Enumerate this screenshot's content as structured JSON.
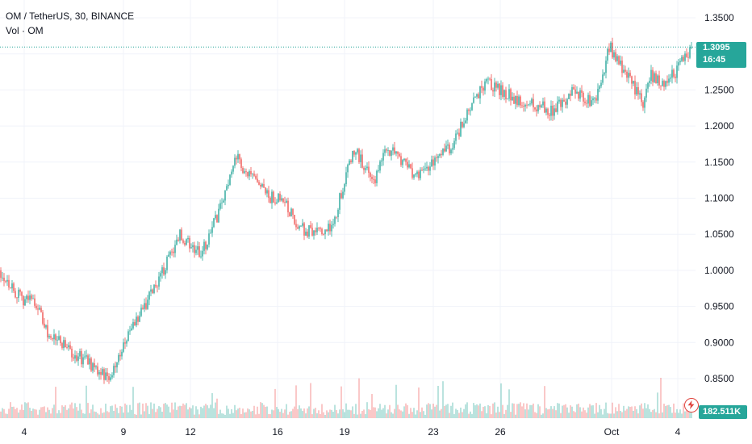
{
  "legend": {
    "symbol": "OM / TetherUS, 30, BINANCE",
    "volume": "Vol · OM"
  },
  "price_label": {
    "price": "1.3095",
    "countdown": "16:45"
  },
  "volume_label": "182.511K",
  "icons": {
    "alert": "lightning-alert-icon"
  },
  "colors": {
    "up": "#26a69a",
    "down": "#ef5350",
    "grid": "#f0f3fa",
    "text": "#131722"
  },
  "chart_data": {
    "type": "candlestick",
    "y_axis_ticks": [
      "1.3500",
      "1.3000",
      "1.2500",
      "1.2000",
      "1.1500",
      "1.1000",
      "1.0500",
      "1.0000",
      "0.9500",
      "0.9000",
      "0.8500"
    ],
    "ylim": [
      0.82,
      1.36
    ],
    "x_axis_ticks": [
      "4",
      "9",
      "12",
      "16",
      "19",
      "23",
      "26",
      "Oct",
      "4"
    ],
    "trend": {
      "x": [
        0,
        3,
        5,
        7,
        10,
        13,
        16,
        18,
        22,
        26,
        29,
        32,
        34,
        36,
        39,
        41,
        43,
        46,
        48,
        51,
        54,
        56,
        60,
        65,
        70,
        74,
        77,
        80,
        83,
        86,
        88,
        90,
        93,
        94,
        96,
        98,
        100
      ],
      "y": [
        1.0,
        0.96,
        0.96,
        0.91,
        0.89,
        0.87,
        0.85,
        0.9,
        0.97,
        1.05,
        1.02,
        1.09,
        1.16,
        1.13,
        1.1,
        1.1,
        1.06,
        1.05,
        1.06,
        1.17,
        1.12,
        1.17,
        1.13,
        1.17,
        1.26,
        1.24,
        1.23,
        1.22,
        1.25,
        1.23,
        1.31,
        1.28,
        1.23,
        1.27,
        1.26,
        1.28,
        1.31
      ]
    },
    "last_price": 1.3095,
    "volume_axis_label": "182.511K",
    "grid": true
  }
}
